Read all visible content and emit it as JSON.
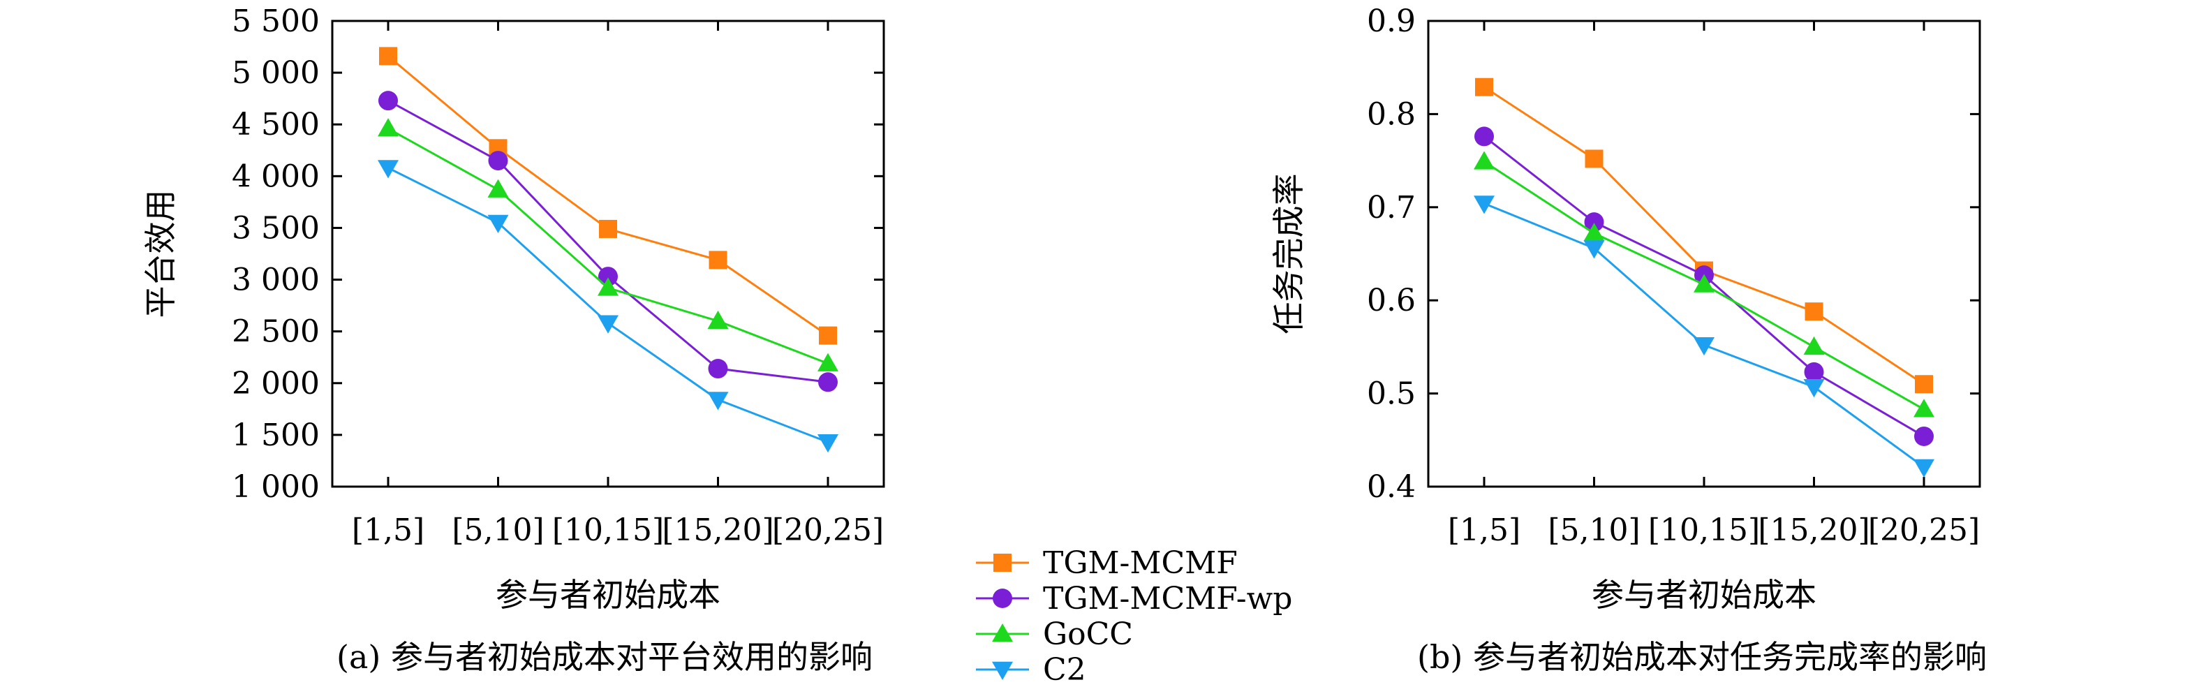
{
  "legend": {
    "entries": [
      {
        "label": "TGM-MCMF",
        "color": "#ff7f0e",
        "marker": "square"
      },
      {
        "label": "TGM-MCMF-wp",
        "color": "#7b1fd6",
        "marker": "circle"
      },
      {
        "label": "GoCC",
        "color": "#1ed81e",
        "marker": "triangle-up"
      },
      {
        "label": "C2",
        "color": "#1ea0f0",
        "marker": "triangle-down"
      }
    ]
  },
  "chart_data": [
    {
      "type": "line",
      "caption": "(a) 参与者初始成本对平台效用的影响",
      "xlabel": "参与者初始成本",
      "ylabel": "平台效用",
      "categories": [
        "[1,5]",
        "[5,10]",
        "[10,15]",
        "[15,20]",
        "[20,25]"
      ],
      "ylim": [
        1000,
        5500
      ],
      "yticks": [
        1000,
        1500,
        2000,
        2500,
        3000,
        3500,
        4000,
        4500,
        5000,
        5500
      ],
      "ytick_labels": [
        "1 000",
        "1 500",
        "2 000",
        "2 500",
        "3 000",
        "3 500",
        "4 000",
        "4 500",
        "5 000",
        "5 500"
      ],
      "grid": false,
      "series": [
        {
          "name": "TGM-MCMF",
          "values": [
            5160,
            4270,
            3490,
            3190,
            2460
          ]
        },
        {
          "name": "TGM-MCMF-wp",
          "values": [
            4730,
            4150,
            3030,
            2140,
            2010
          ]
        },
        {
          "name": "GoCC",
          "values": [
            4460,
            3870,
            2920,
            2600,
            2190
          ]
        },
        {
          "name": "C2",
          "values": [
            4080,
            3550,
            2580,
            1840,
            1430
          ]
        }
      ]
    },
    {
      "type": "line",
      "caption": "(b) 参与者初始成本对任务完成率的影响",
      "xlabel": "参与者初始成本",
      "ylabel": "任务完成率",
      "categories": [
        "[1,5]",
        "[5,10]",
        "[10,15]",
        "[15,20]",
        "[20,25]"
      ],
      "ylim": [
        0.4,
        0.9
      ],
      "yticks": [
        0.4,
        0.5,
        0.6,
        0.7,
        0.8,
        0.9
      ],
      "ytick_labels": [
        "0.4",
        "0.5",
        "0.6",
        "0.7",
        "0.8",
        "0.9"
      ],
      "grid": false,
      "series": [
        {
          "name": "TGM-MCMF",
          "values": [
            0.829,
            0.752,
            0.632,
            0.588,
            0.51
          ]
        },
        {
          "name": "TGM-MCMF-wp",
          "values": [
            0.776,
            0.684,
            0.627,
            0.523,
            0.454
          ]
        },
        {
          "name": "GoCC",
          "values": [
            0.749,
            0.672,
            0.617,
            0.55,
            0.483
          ]
        },
        {
          "name": "C2",
          "values": [
            0.704,
            0.656,
            0.552,
            0.507,
            0.421
          ]
        }
      ]
    }
  ]
}
